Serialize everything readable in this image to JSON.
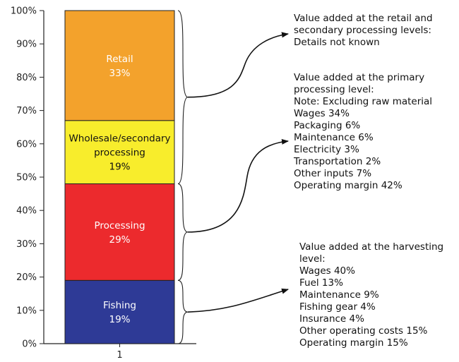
{
  "chart_data": {
    "type": "bar",
    "stacked": true,
    "categories": [
      "1"
    ],
    "ylim": [
      0,
      100
    ],
    "yticks": [
      "0%",
      "10%",
      "20%",
      "30%",
      "40%",
      "50%",
      "60%",
      "70%",
      "80%",
      "90%",
      "100%"
    ],
    "series": [
      {
        "name": "Fishing",
        "value": 19,
        "label_lines": [
          "Fishing",
          "19%"
        ],
        "color": "#2e3a96",
        "text_color": "#ffffff"
      },
      {
        "name": "Processing",
        "value": 29,
        "label_lines": [
          "Processing",
          "29%"
        ],
        "color": "#ec2a2d",
        "text_color": "#ffffff"
      },
      {
        "name": "Wholesale/secondary processing",
        "value": 19,
        "label_lines": [
          "Wholesale/secondary",
          "processing",
          "19%"
        ],
        "color": "#f8ed2c",
        "text_color": "#111111"
      },
      {
        "name": "Retail",
        "value": 33,
        "label_lines": [
          "Retail",
          "33%"
        ],
        "color": "#f3a22c",
        "text_color": "#ffffff"
      }
    ],
    "annotations": [
      {
        "id": "retail",
        "lines": [
          "Value added at the retail and",
          "secondary processing levels:",
          "Details not known"
        ]
      },
      {
        "id": "processing",
        "lines": [
          "Value added at the primary",
          "processing level:",
          "Note:  Excluding raw material",
          "Wages 34%",
          "Packaging 6%",
          "Maintenance 6%",
          "Electricity 3%",
          "Transportation 2%",
          "Other inputs 7%",
          "Operating margin 42%"
        ]
      },
      {
        "id": "harvesting",
        "lines": [
          "Value added at the harvesting",
          "level:",
          "Wages 40%",
          "Fuel  13%",
          "Maintenance 9%",
          "Fishing gear 4%",
          "Insurance 4%",
          "Other operating costs 15%",
          "Operating margin 15%"
        ]
      }
    ]
  }
}
